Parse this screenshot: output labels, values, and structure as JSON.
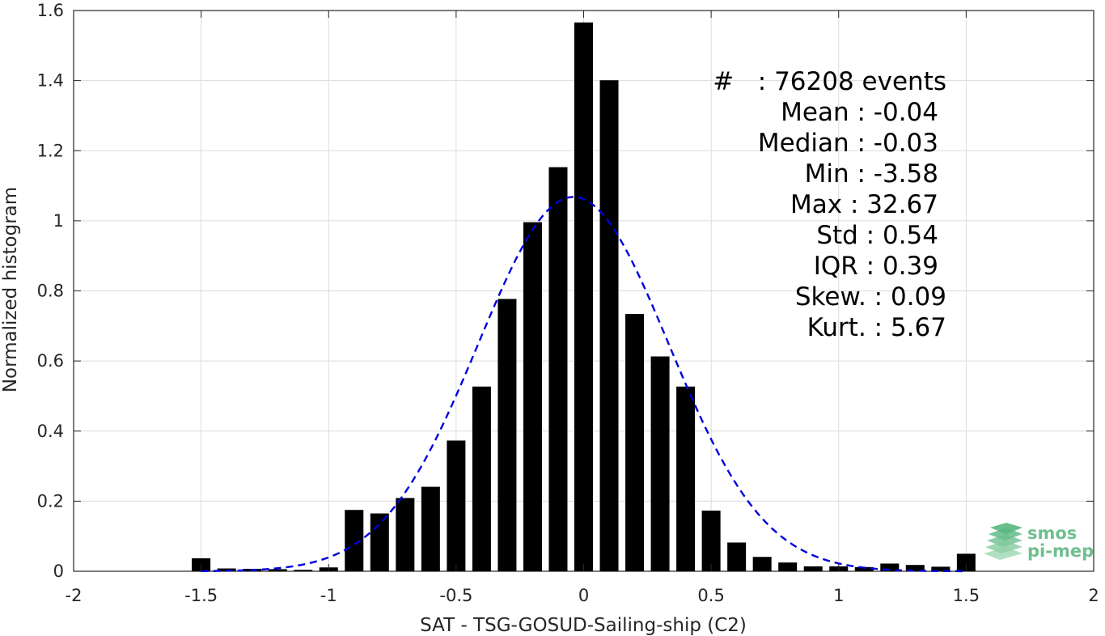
{
  "chart_data": {
    "type": "bar",
    "xlabel": "SAT - TSG-GOSUD-Sailing-ship (C2)",
    "ylabel": "Normalized histogram",
    "xlim": [
      -2,
      2
    ],
    "ylim": [
      0,
      1.6
    ],
    "xticks": [
      -2,
      -1.5,
      -1,
      -0.5,
      0,
      0.5,
      1,
      1.5,
      2
    ],
    "xtick_labels": [
      "-2",
      "-1.5",
      "-1",
      "-0.5",
      "0",
      "0.5",
      "1",
      "1.5",
      "2"
    ],
    "yticks": [
      0,
      0.2,
      0.4,
      0.6,
      0.8,
      1,
      1.2,
      1.4,
      1.6
    ],
    "ytick_labels": [
      "0",
      "0.2",
      "0.4",
      "0.6",
      "0.8",
      "1",
      "1.2",
      "1.4",
      "1.6"
    ],
    "grid": true,
    "bin_width": 0.1,
    "bins": [
      {
        "x": -1.5,
        "y": 0.037
      },
      {
        "x": -1.4,
        "y": 0.008
      },
      {
        "x": -1.3,
        "y": 0.007
      },
      {
        "x": -1.2,
        "y": 0.006
      },
      {
        "x": -1.1,
        "y": 0.004
      },
      {
        "x": -1.0,
        "y": 0.011
      },
      {
        "x": -0.9,
        "y": 0.175
      },
      {
        "x": -0.8,
        "y": 0.165
      },
      {
        "x": -0.7,
        "y": 0.209
      },
      {
        "x": -0.6,
        "y": 0.241
      },
      {
        "x": -0.5,
        "y": 0.373
      },
      {
        "x": -0.4,
        "y": 0.527
      },
      {
        "x": -0.3,
        "y": 0.777
      },
      {
        "x": -0.2,
        "y": 0.996
      },
      {
        "x": -0.1,
        "y": 1.153
      },
      {
        "x": 0.0,
        "y": 1.566
      },
      {
        "x": 0.1,
        "y": 1.401
      },
      {
        "x": 0.2,
        "y": 0.734
      },
      {
        "x": 0.3,
        "y": 0.613
      },
      {
        "x": 0.4,
        "y": 0.527
      },
      {
        "x": 0.5,
        "y": 0.173
      },
      {
        "x": 0.6,
        "y": 0.082
      },
      {
        "x": 0.7,
        "y": 0.041
      },
      {
        "x": 0.8,
        "y": 0.025
      },
      {
        "x": 0.9,
        "y": 0.014
      },
      {
        "x": 1.0,
        "y": 0.014
      },
      {
        "x": 1.1,
        "y": 0.012
      },
      {
        "x": 1.2,
        "y": 0.022
      },
      {
        "x": 1.3,
        "y": 0.018
      },
      {
        "x": 1.4,
        "y": 0.013
      },
      {
        "x": 1.5,
        "y": 0.05
      }
    ],
    "fit_curve": {
      "style": "dashed",
      "color": "#0000e0",
      "mean": -0.04,
      "std": 0.374,
      "peak": 1.068,
      "x_range": [
        -1.5,
        1.5
      ]
    },
    "annotation_lines": [
      "#   : 76208 events",
      "Mean : -0.04",
      "Median : -0.03",
      "Min : -3.58",
      "Max : 32.67",
      "Std : 0.54",
      "IQR : 0.39",
      "Skew. : 0.09",
      "Kurt. : 5.67"
    ],
    "bar_color": "#000000"
  },
  "logo": {
    "line1": "smos",
    "line2": "pi-mep",
    "color": "#6fbf8f"
  }
}
